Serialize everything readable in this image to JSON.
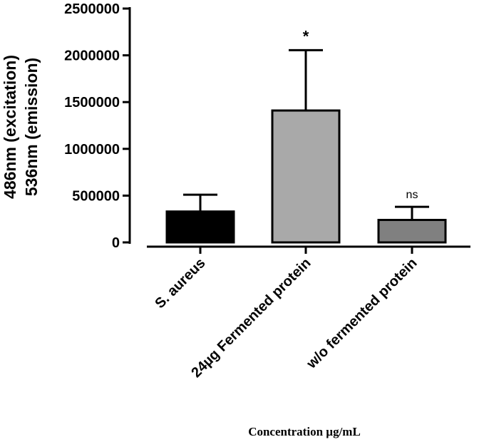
{
  "chart_data": {
    "type": "bar",
    "categories": [
      "S. aureus",
      "24µg Fermented protein",
      "w/o fermented protein"
    ],
    "values": [
      330000,
      1410000,
      240000
    ],
    "errors": [
      180000,
      645000,
      140000
    ],
    "significance": [
      "",
      "*",
      "ns"
    ],
    "colors": [
      "#000000",
      "#a9a9a9",
      "#808080"
    ],
    "ylim": [
      0,
      2500000
    ],
    "yticks": [
      0,
      500000,
      1000000,
      1500000,
      2000000,
      2500000
    ],
    "ytick_labels": [
      "0",
      "500000",
      "1000000",
      "1500000",
      "2000000",
      "2500000"
    ],
    "ylabel_lines": [
      "486nm (excitation)",
      "536nm (emission)"
    ],
    "xlabel": "Concentration µg/mL",
    "title": "",
    "grid": false,
    "legend": false
  }
}
